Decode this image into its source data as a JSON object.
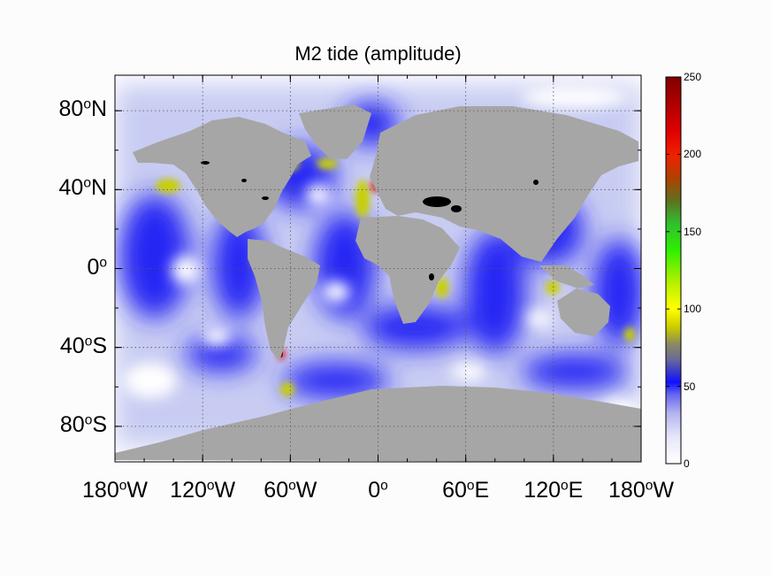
{
  "map": {
    "title": "M2 tide (amplitude)",
    "lat_ticks": [
      {
        "value": 80,
        "num": "80",
        "deg": "o",
        "hemi": "N"
      },
      {
        "value": 40,
        "num": "40",
        "deg": "o",
        "hemi": "N"
      },
      {
        "value": 0,
        "num": "0",
        "deg": "o",
        "hemi": ""
      },
      {
        "value": -40,
        "num": "40",
        "deg": "o",
        "hemi": "S"
      },
      {
        "value": -80,
        "num": "80",
        "deg": "o",
        "hemi": "S"
      }
    ],
    "lon_ticks": [
      {
        "value": -180,
        "num": "180",
        "deg": "o",
        "hemi": "W"
      },
      {
        "value": -120,
        "num": "120",
        "deg": "o",
        "hemi": "W"
      },
      {
        "value": -60,
        "num": "60",
        "deg": "o",
        "hemi": "W"
      },
      {
        "value": 0,
        "num": "0",
        "deg": "o",
        "hemi": ""
      },
      {
        "value": 60,
        "num": "60",
        "deg": "o",
        "hemi": "E"
      },
      {
        "value": 120,
        "num": "120",
        "deg": "o",
        "hemi": "E"
      },
      {
        "value": 180,
        "num": "180",
        "deg": "o",
        "hemi": "W"
      }
    ],
    "lat_range": [
      -98,
      98
    ],
    "lon_range": [
      -180,
      180
    ],
    "grid": true,
    "land_color": "#a6a6a6",
    "colorbar": {
      "range": [
        0,
        250
      ],
      "ticks": [
        0,
        50,
        100,
        150,
        200,
        250
      ],
      "tick_labels": [
        "0",
        "50",
        "100",
        "150",
        "200",
        "250"
      ],
      "colors": [
        "#ffffff",
        "#c8c8f0",
        "#8080e8",
        "#2020f0",
        "#0000ff",
        "#5050a0",
        "#808060",
        "#c8c800",
        "#ffff00",
        "#a0f000",
        "#00f000",
        "#40c040",
        "#c06000",
        "#ff2000",
        "#c00000",
        "#800000"
      ]
    }
  }
}
